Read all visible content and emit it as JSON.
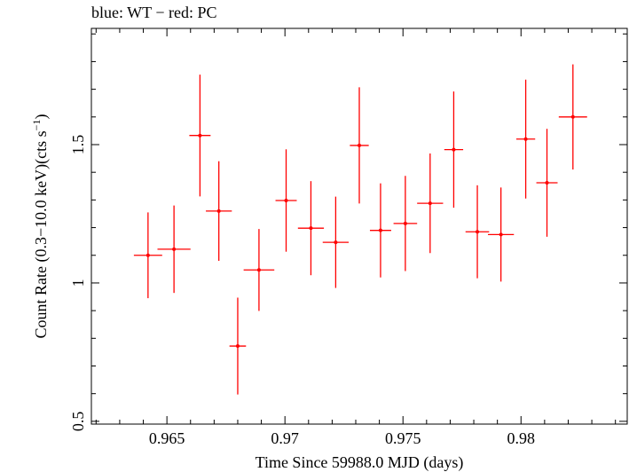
{
  "chart_data": {
    "type": "scatter",
    "title": "blue: WT − red: PC",
    "xlabel": "Time Since 59988.0 MJD (days)",
    "ylabel_main": "Count Rate (0.3−10.0 keV)(cts s",
    "ylabel_sup": "−1",
    "ylabel_close": ")",
    "xlim": [
      0.9618,
      0.9845
    ],
    "ylim": [
      0.49,
      1.92
    ],
    "xticks": [
      {
        "value": 0.965,
        "label": "0.965"
      },
      {
        "value": 0.97,
        "label": "0.97"
      },
      {
        "value": 0.975,
        "label": "0.975"
      },
      {
        "value": 0.98,
        "label": "0.98"
      }
    ],
    "yticks": [
      {
        "value": 0.5,
        "label": "0.5"
      },
      {
        "value": 1.0,
        "label": "1"
      },
      {
        "value": 1.5,
        "label": "1.5"
      }
    ],
    "grid": false,
    "series": [
      {
        "name": "PC",
        "color": "#ff0000",
        "points": [
          {
            "x": 0.9642,
            "xerr": 0.0006,
            "y": 1.1,
            "yerr_lo": 0.155,
            "yerr_hi": 0.155
          },
          {
            "x": 0.9653,
            "xerr": 0.0007,
            "y": 1.122,
            "yerr_lo": 0.158,
            "yerr_hi": 0.158
          },
          {
            "x": 0.9664,
            "xerr": 0.00045,
            "y": 1.533,
            "yerr_lo": 0.22,
            "yerr_hi": 0.22
          },
          {
            "x": 0.9672,
            "xerr": 0.00055,
            "y": 1.26,
            "yerr_lo": 0.18,
            "yerr_hi": 0.18
          },
          {
            "x": 0.968,
            "xerr": 0.00035,
            "y": 0.772,
            "yerr_lo": 0.175,
            "yerr_hi": 0.175
          },
          {
            "x": 0.9689,
            "xerr": 0.00065,
            "y": 1.047,
            "yerr_lo": 0.148,
            "yerr_hi": 0.148
          },
          {
            "x": 0.97005,
            "xerr": 0.00045,
            "y": 1.298,
            "yerr_lo": 0.185,
            "yerr_hi": 0.185
          },
          {
            "x": 0.9711,
            "xerr": 0.00055,
            "y": 1.198,
            "yerr_lo": 0.17,
            "yerr_hi": 0.17
          },
          {
            "x": 0.97215,
            "xerr": 0.00055,
            "y": 1.147,
            "yerr_lo": 0.165,
            "yerr_hi": 0.165
          },
          {
            "x": 0.97315,
            "xerr": 0.0004,
            "y": 1.497,
            "yerr_lo": 0.21,
            "yerr_hi": 0.21
          },
          {
            "x": 0.97405,
            "xerr": 0.00045,
            "y": 1.19,
            "yerr_lo": 0.17,
            "yerr_hi": 0.17
          },
          {
            "x": 0.9751,
            "xerr": 0.0005,
            "y": 1.215,
            "yerr_lo": 0.172,
            "yerr_hi": 0.172
          },
          {
            "x": 0.97615,
            "xerr": 0.00055,
            "y": 1.288,
            "yerr_lo": 0.18,
            "yerr_hi": 0.18
          },
          {
            "x": 0.97715,
            "xerr": 0.0004,
            "y": 1.482,
            "yerr_lo": 0.21,
            "yerr_hi": 0.21
          },
          {
            "x": 0.97815,
            "xerr": 0.0005,
            "y": 1.185,
            "yerr_lo": 0.168,
            "yerr_hi": 0.168
          },
          {
            "x": 0.97915,
            "xerr": 0.00055,
            "y": 1.175,
            "yerr_lo": 0.17,
            "yerr_hi": 0.17
          },
          {
            "x": 0.9802,
            "xerr": 0.0004,
            "y": 1.52,
            "yerr_lo": 0.215,
            "yerr_hi": 0.215
          },
          {
            "x": 0.9811,
            "xerr": 0.00045,
            "y": 1.362,
            "yerr_lo": 0.195,
            "yerr_hi": 0.195
          },
          {
            "x": 0.9822,
            "xerr": 0.0006,
            "y": 1.6,
            "yerr_lo": 0.19,
            "yerr_hi": 0.19
          }
        ]
      }
    ]
  }
}
